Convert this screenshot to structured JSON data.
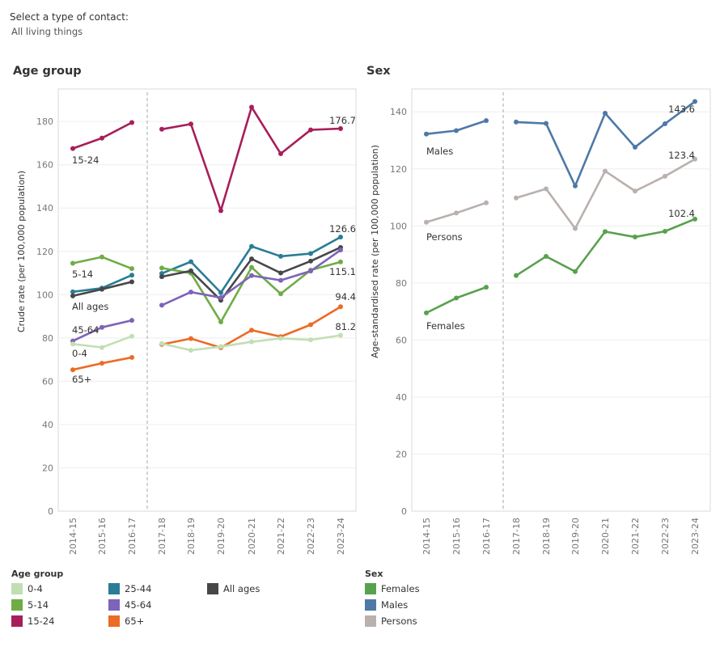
{
  "filter": {
    "label": "Select a type of contact:",
    "value": "All living things"
  },
  "panels": {
    "age_title": "Age group",
    "sex_title": "Sex"
  },
  "legend": {
    "age_title": "Age group",
    "age_items": [
      {
        "label": "0-4",
        "color": "#c2dfb3"
      },
      {
        "label": "5-14",
        "color": "#6fac46"
      },
      {
        "label": "15-24",
        "color": "#a71f5a"
      },
      {
        "label": "25-44",
        "color": "#2b7c96"
      },
      {
        "label": "45-64",
        "color": "#7d63b9"
      },
      {
        "label": "65+",
        "color": "#ec6b25"
      },
      {
        "label": "All ages",
        "color": "#474747"
      }
    ],
    "sex_title": "Sex",
    "sex_items": [
      {
        "label": "Females",
        "color": "#58a14e"
      },
      {
        "label": "Males",
        "color": "#4e79a7"
      },
      {
        "label": "Persons",
        "color": "#bab0ac"
      }
    ]
  },
  "chart_data": [
    {
      "type": "line",
      "title": "Age group",
      "ylabel": "Crude rate (per 100,000 population)",
      "categories": [
        "2014-15",
        "2015-16",
        "2016-17",
        "2017-18",
        "2018-19",
        "2019-20",
        "2020-21",
        "2021-22",
        "2022-23",
        "2023-24"
      ],
      "ylim": [
        0,
        195
      ],
      "yticks": [
        0,
        20,
        40,
        60,
        80,
        100,
        120,
        140,
        160,
        180
      ],
      "break_after_index": 2,
      "series": [
        {
          "name": "15-24",
          "color": "#a71f5a",
          "values": [
            167.5,
            172.3,
            179.5,
            176.4,
            178.8,
            138.8,
            186.6,
            165.1,
            176.1,
            176.7
          ],
          "series_label": "15-24",
          "end_label": "176.7"
        },
        {
          "name": "25-44",
          "color": "#2b7c96",
          "values": [
            101.3,
            103.0,
            109.0,
            109.8,
            115.2,
            100.9,
            122.3,
            117.7,
            119.0,
            126.6
          ],
          "series_label": "",
          "end_label": "126.6"
        },
        {
          "name": "5-14",
          "color": "#6fac46",
          "values": [
            114.5,
            117.4,
            112.0,
            112.3,
            109.9,
            87.4,
            112.6,
            100.4,
            111.3,
            115.1
          ],
          "series_label": "5-14",
          "end_label": "115.1"
        },
        {
          "name": "All ages",
          "color": "#474747",
          "values": [
            99.4,
            102.5,
            105.9,
            108.3,
            111.0,
            97.4,
            116.5,
            110.0,
            115.5,
            121.8
          ],
          "series_label": "All ages",
          "end_label": ""
        },
        {
          "name": "45-64",
          "color": "#7d63b9",
          "values": [
            78.6,
            84.9,
            88.1,
            95.1,
            101.2,
            98.6,
            108.8,
            106.6,
            110.9,
            120.6
          ],
          "series_label": "45-64",
          "end_label": ""
        },
        {
          "name": "65+",
          "color": "#ec6b25",
          "values": [
            65.3,
            68.3,
            71.0,
            77.0,
            79.7,
            75.5,
            83.6,
            80.6,
            86.1,
            94.4
          ],
          "series_label": "65+",
          "end_label": "94.4"
        },
        {
          "name": "0-4",
          "color": "#c2dfb3",
          "values": [
            77.2,
            75.6,
            80.8,
            77.4,
            74.3,
            76.0,
            78.2,
            79.8,
            79.1,
            81.2
          ],
          "series_label": "0-4",
          "end_label": "81.2"
        }
      ]
    },
    {
      "type": "line",
      "title": "Sex",
      "ylabel": "Age-standardised rate (per 100,000 population)",
      "categories": [
        "2014-15",
        "2015-16",
        "2016-17",
        "2017-18",
        "2018-19",
        "2019-20",
        "2020-21",
        "2021-22",
        "2022-23",
        "2023-24"
      ],
      "ylim": [
        0,
        148
      ],
      "yticks": [
        0,
        20,
        40,
        60,
        80,
        100,
        120,
        140
      ],
      "break_after_index": 2,
      "series": [
        {
          "name": "Males",
          "color": "#4e79a7",
          "values": [
            132.2,
            133.4,
            136.9,
            136.4,
            135.9,
            114.0,
            139.5,
            127.6,
            135.8,
            143.6
          ],
          "series_label": "Males",
          "end_label": "143.6"
        },
        {
          "name": "Persons",
          "color": "#bab0ac",
          "values": [
            101.3,
            104.5,
            108.1,
            109.8,
            113.0,
            99.1,
            119.2,
            112.2,
            117.4,
            123.4
          ],
          "series_label": "Persons",
          "end_label": "123.4"
        },
        {
          "name": "Females",
          "color": "#58a14e",
          "values": [
            69.5,
            74.7,
            78.5,
            82.6,
            89.3,
            84.0,
            98.0,
            96.1,
            98.1,
            102.4
          ],
          "series_label": "Females",
          "end_label": "102.4"
        }
      ]
    }
  ]
}
